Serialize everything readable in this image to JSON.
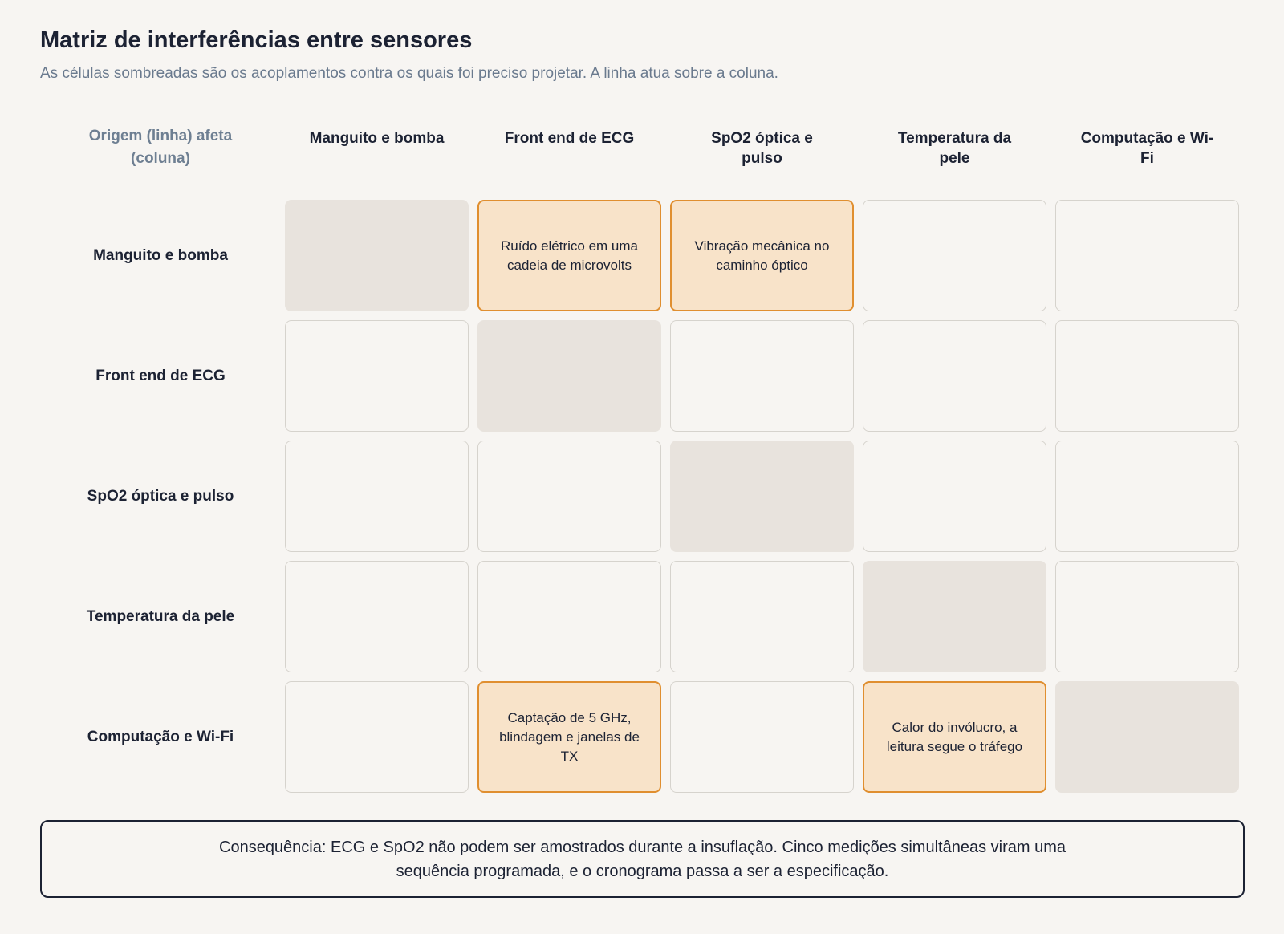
{
  "title": "Matriz de interferências entre sensores",
  "subtitle": "As células sombreadas são os acoplamentos contra os quais foi preciso projetar. A linha atua sobre a coluna.",
  "corner_label": "Origem (linha) afeta (coluna)",
  "columns": [
    "Manguito e bomba",
    "Front end de ECG",
    "SpO2 óptica e pulso",
    "Temperatura da pele",
    "Computação e Wi-Fi"
  ],
  "rows": [
    {
      "label": "Manguito e bomba",
      "cells": [
        "",
        "Ruído elétrico em uma cadeia de microvolts",
        "Vibração mecânica no caminho óptico",
        "",
        ""
      ]
    },
    {
      "label": "Front end de ECG",
      "cells": [
        "",
        "",
        "",
        "",
        ""
      ]
    },
    {
      "label": "SpO2 óptica e pulso",
      "cells": [
        "",
        "",
        "",
        "",
        ""
      ]
    },
    {
      "label": "Temperatura da pele",
      "cells": [
        "",
        "",
        "",
        "",
        ""
      ]
    },
    {
      "label": "Computação e Wi-Fi",
      "cells": [
        "",
        "Captação de 5 GHz, blindagem e janelas de TX",
        "",
        "Calor do invólucro, a leitura segue o tráfego",
        ""
      ]
    }
  ],
  "consequence": "Consequência: ECG e SpO2 não podem ser amostrados durante a insuflação. Cinco medições simultâneas viram uma sequência programada, e o cronograma passa a ser a especificação.",
  "colors": {
    "diagonal": "#e8e3dd",
    "coupling_fill": "#f8e3c9",
    "coupling_border": "#e08f30"
  }
}
